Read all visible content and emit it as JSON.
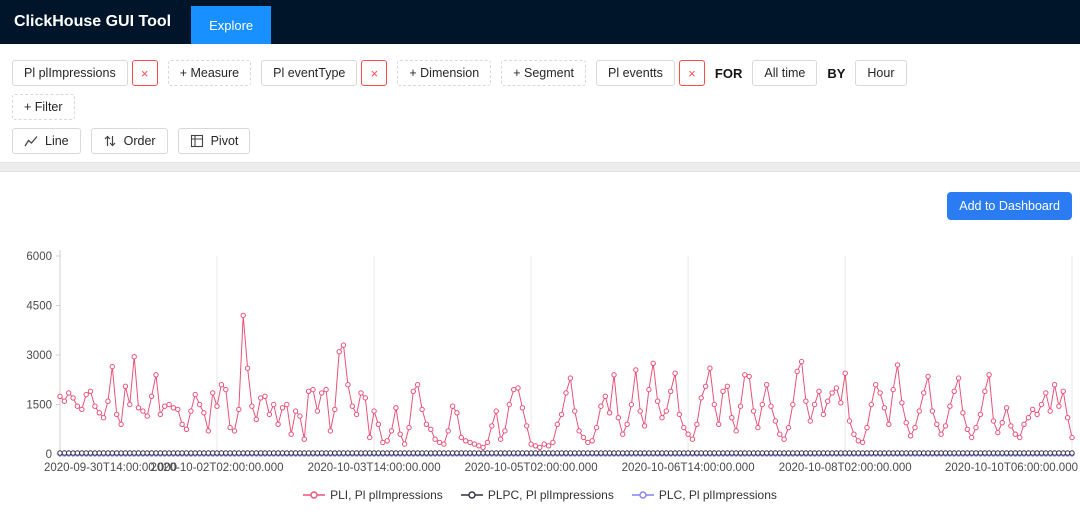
{
  "header": {
    "title": "ClickHouse GUI Tool",
    "explore_tab": "Explore"
  },
  "query_builder": {
    "remove_icon": "×",
    "measure": {
      "value": "Pl plImpressions",
      "add_label": "+ Measure"
    },
    "dimension": {
      "value": "Pl eventType",
      "add_label": "+ Dimension"
    },
    "segment": {
      "add_label": "+ Segment"
    },
    "time": {
      "value": "Pl eventts",
      "for_label": "FOR",
      "range": "All time",
      "by_label": "BY",
      "granularity": "Hour"
    },
    "filter": {
      "add_label": "+ Filter"
    }
  },
  "view_controls": {
    "chart_type": "Line",
    "order": "Order",
    "pivot": "Pivot"
  },
  "actions": {
    "add_to_dashboard": "Add to Dashboard"
  },
  "colors": {
    "header_bg": "#001529",
    "accent_blue": "#1890ff",
    "remove_red": "#ff4d4f",
    "primary_blue": "#2b7bf3"
  },
  "chart_data": {
    "type": "line",
    "title": "",
    "xlabel": "",
    "ylabel": "",
    "grid": "vertical",
    "legend_position": "bottom",
    "ylim": [
      0,
      6000
    ],
    "y_ticks": [
      0,
      1500,
      3000,
      4500,
      6000
    ],
    "n_points": 233,
    "x_interval": "1 hour",
    "x_tick_indices": [
      0,
      36,
      72,
      108,
      144,
      180,
      232
    ],
    "x_tick_labels": [
      "2020-09-30T14:00:00.000",
      "2020-10-02T02:00:00.000",
      "2020-10-03T14:00:00.000",
      "2020-10-05T02:00:00.000",
      "2020-10-06T14:00:00.000",
      "2020-10-08T02:00:00.000",
      "2020-10-10T06:00:00.000"
    ],
    "series": [
      {
        "name": "PLI, Pl plImpressions",
        "color": "#e8537a",
        "values": [
          1750,
          1600,
          1850,
          1700,
          1450,
          1350,
          1800,
          1900,
          1450,
          1250,
          1100,
          1600,
          2650,
          1200,
          900,
          2050,
          1500,
          2950,
          1400,
          1300,
          1150,
          1750,
          2400,
          1200,
          1450,
          1500,
          1400,
          1350,
          900,
          750,
          1300,
          1800,
          1500,
          1250,
          700,
          1850,
          1450,
          2100,
          1950,
          800,
          700,
          1350,
          4200,
          2600,
          1450,
          1050,
          1700,
          1750,
          1200,
          1500,
          900,
          1400,
          1500,
          600,
          1300,
          1150,
          450,
          1900,
          1950,
          1300,
          1850,
          1950,
          700,
          1350,
          3100,
          3300,
          2100,
          1450,
          1200,
          1850,
          1700,
          500,
          1300,
          900,
          350,
          400,
          700,
          1400,
          600,
          300,
          800,
          1900,
          2100,
          1350,
          900,
          750,
          450,
          350,
          300,
          700,
          1450,
          1250,
          500,
          400,
          350,
          300,
          250,
          200,
          350,
          850,
          1300,
          450,
          700,
          1500,
          1950,
          2000,
          1400,
          850,
          300,
          250,
          200,
          300,
          250,
          350,
          900,
          1200,
          1850,
          2300,
          1300,
          700,
          500,
          350,
          400,
          800,
          1450,
          1750,
          1250,
          2400,
          1100,
          600,
          900,
          1500,
          2550,
          1300,
          850,
          1950,
          2750,
          1600,
          1100,
          1300,
          1900,
          2450,
          1200,
          800,
          600,
          450,
          900,
          1700,
          2050,
          2600,
          1500,
          900,
          1900,
          2050,
          1100,
          700,
          1450,
          2400,
          2350,
          1300,
          800,
          1500,
          2100,
          1450,
          1000,
          600,
          450,
          800,
          1500,
          2500,
          2800,
          1600,
          1000,
          1500,
          1900,
          1200,
          1600,
          1850,
          2000,
          1550,
          2450,
          1000,
          600,
          400,
          350,
          800,
          1500,
          2100,
          1850,
          1400,
          900,
          1950,
          2700,
          1550,
          950,
          550,
          800,
          1300,
          1850,
          2350,
          1300,
          900,
          600,
          850,
          1450,
          1900,
          2300,
          1250,
          750,
          500,
          800,
          1200,
          1900,
          2400,
          1000,
          650,
          950,
          1400,
          850,
          600,
          500,
          900,
          1100,
          1350,
          1200,
          1500,
          1850,
          1300,
          2100,
          1450,
          1900,
          1100,
          500
        ]
      },
      {
        "name": "PLPC, Pl plImpressions",
        "color": "#323244",
        "constant": 30,
        "values": null
      },
      {
        "name": "PLC, Pl plImpressions",
        "color": "#8583f1",
        "constant": 0,
        "values": null
      }
    ]
  }
}
